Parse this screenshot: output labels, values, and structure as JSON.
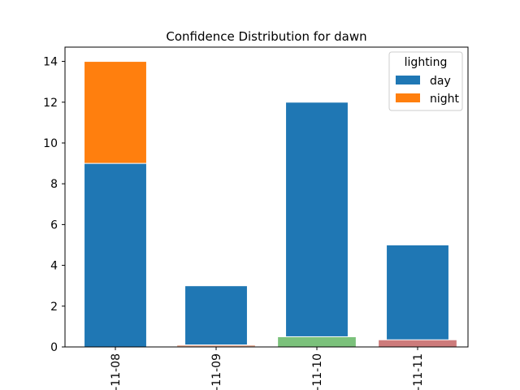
{
  "chart_data": {
    "type": "bar",
    "stacked": true,
    "title": "Confidence Distribution for dawn",
    "xlabel": "",
    "ylabel": "",
    "categories": [
      "-11-08",
      "-11-09",
      "-11-10",
      "-11-11"
    ],
    "series": [
      {
        "name": "day",
        "color": "#1f77b4",
        "values": [
          9,
          3,
          12,
          5
        ]
      },
      {
        "name": "night",
        "color": "#ff7f0e",
        "values": [
          5,
          0,
          0,
          0
        ]
      }
    ],
    "baseline_bars": {
      "values": [
        0,
        0.1,
        0.5,
        0.35
      ],
      "colors": [
        "#1f77b4",
        "#e5ae98",
        "#7bc17b",
        "#cd7b7b"
      ]
    },
    "ylim": [
      0,
      14.7
    ],
    "yticks": [
      0,
      2,
      4,
      6,
      8,
      10,
      12,
      14
    ],
    "legend": {
      "title": "lighting",
      "position": "top-right"
    },
    "grid": false
  }
}
